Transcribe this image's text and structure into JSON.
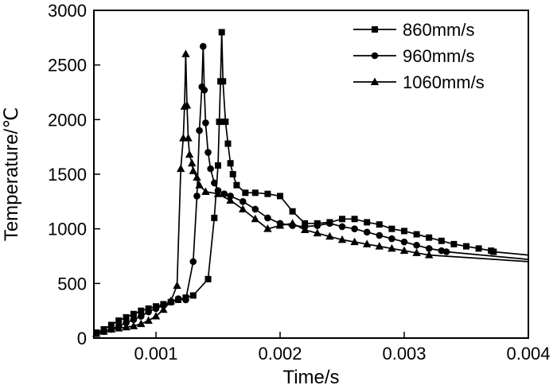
{
  "chart_data": {
    "type": "line",
    "title": "",
    "xlabel": "Time/s",
    "ylabel": "Temperature/℃",
    "xlim": [
      0.0005,
      0.004
    ],
    "ylim": [
      0,
      3000
    ],
    "xticks": [
      0.001,
      0.002,
      0.003,
      0.004
    ],
    "xtick_labels": [
      "0.001",
      "0.002",
      "0.003",
      "0.004"
    ],
    "yticks": [
      0,
      500,
      1000,
      1500,
      2000,
      2500,
      3000
    ],
    "ytick_labels": [
      "0",
      "500",
      "1000",
      "1500",
      "2000",
      "2500",
      "3000"
    ],
    "grid": false,
    "legend_position": "top-right",
    "series": [
      {
        "name": "860mm/s",
        "marker": "square",
        "x": [
          0.00052,
          0.00058,
          0.00064,
          0.0007,
          0.00076,
          0.00082,
          0.00088,
          0.00094,
          0.001,
          0.00106,
          0.00112,
          0.00118,
          0.00124,
          0.0013,
          0.00142,
          0.00147,
          0.0015,
          0.00151,
          0.00152,
          0.00153,
          0.00154,
          0.00156,
          0.00158,
          0.0016,
          0.00162,
          0.00165,
          0.00172,
          0.0018,
          0.0019,
          0.002,
          0.0021,
          0.0022,
          0.0023,
          0.0024,
          0.0025,
          0.0026,
          0.0027,
          0.0028,
          0.0029,
          0.003,
          0.0031,
          0.0032,
          0.0033,
          0.0034,
          0.0035,
          0.0036,
          0.0037,
          0.00372,
          0.004
        ],
        "values": [
          50,
          80,
          120,
          160,
          190,
          220,
          250,
          270,
          290,
          310,
          330,
          350,
          370,
          390,
          540,
          1100,
          1580,
          1980,
          2350,
          2800,
          2350,
          1980,
          1780,
          1600,
          1500,
          1400,
          1330,
          1330,
          1320,
          1300,
          1160,
          1050,
          1050,
          1060,
          1090,
          1090,
          1060,
          1040,
          1000,
          980,
          950,
          920,
          890,
          860,
          840,
          820,
          800,
          790,
          760
        ]
      },
      {
        "name": "960mm/s",
        "marker": "circle",
        "x": [
          0.00052,
          0.00058,
          0.00064,
          0.0007,
          0.00076,
          0.00082,
          0.00088,
          0.00094,
          0.001,
          0.00106,
          0.00112,
          0.00118,
          0.00124,
          0.0013,
          0.00133,
          0.00135,
          0.00137,
          0.00138,
          0.00139,
          0.0014,
          0.00142,
          0.00144,
          0.00147,
          0.0015,
          0.00155,
          0.0016,
          0.0017,
          0.0018,
          0.0019,
          0.002,
          0.0021,
          0.0022,
          0.0023,
          0.0024,
          0.0025,
          0.0026,
          0.0027,
          0.0028,
          0.0029,
          0.003,
          0.0031,
          0.0032,
          0.0033,
          0.00334,
          0.004
        ],
        "values": [
          40,
          60,
          80,
          110,
          140,
          170,
          200,
          240,
          270,
          300,
          330,
          360,
          350,
          700,
          1300,
          1900,
          2300,
          2670,
          2270,
          1970,
          1700,
          1550,
          1420,
          1350,
          1320,
          1300,
          1250,
          1180,
          1100,
          1050,
          1030,
          1020,
          1030,
          1050,
          1020,
          1000,
          970,
          940,
          910,
          880,
          850,
          820,
          800,
          790,
          720
        ]
      },
      {
        "name": "1060mm/s",
        "marker": "triangle",
        "x": [
          0.00052,
          0.00058,
          0.00064,
          0.0007,
          0.00076,
          0.00082,
          0.00088,
          0.00094,
          0.001,
          0.00106,
          0.00112,
          0.00117,
          0.0012,
          0.00122,
          0.00123,
          0.00124,
          0.00125,
          0.00126,
          0.00127,
          0.00129,
          0.0013,
          0.00133,
          0.00135,
          0.0014,
          0.0015,
          0.0016,
          0.0017,
          0.0018,
          0.0019,
          0.002,
          0.0021,
          0.0022,
          0.0023,
          0.0024,
          0.0025,
          0.0026,
          0.0027,
          0.0028,
          0.0029,
          0.003,
          0.0031,
          0.0032,
          0.004
        ],
        "values": [
          40,
          60,
          80,
          90,
          100,
          110,
          130,
          160,
          200,
          260,
          340,
          480,
          1550,
          1830,
          2120,
          2600,
          2130,
          1830,
          1680,
          1600,
          1530,
          1470,
          1400,
          1340,
          1320,
          1260,
          1180,
          1090,
          1000,
          1030,
          1050,
          990,
          960,
          930,
          900,
          880,
          860,
          840,
          820,
          800,
          780,
          760,
          700
        ]
      }
    ]
  }
}
